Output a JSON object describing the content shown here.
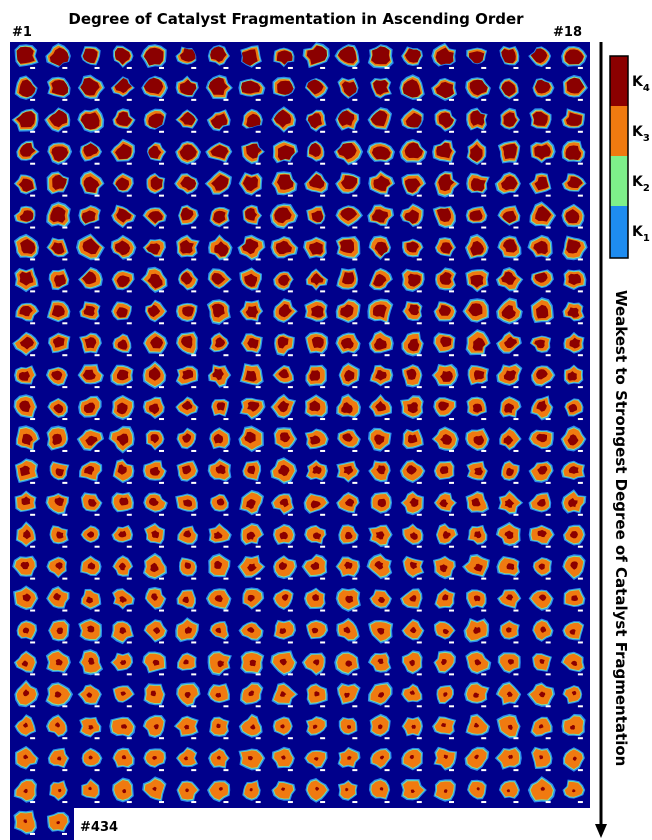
{
  "header": {
    "title": "Degree of Catalyst Fragmentation in Ascending Order",
    "first_label": "#1",
    "row_end_label": "#18",
    "last_label": "#434"
  },
  "colorbar": {
    "levels": [
      {
        "base": "K",
        "sub": "4"
      },
      {
        "base": "K",
        "sub": "3"
      },
      {
        "base": "K",
        "sub": "2"
      },
      {
        "base": "K",
        "sub": "1"
      }
    ]
  },
  "side_label": "Weakest to Strongest Degree of Catalyst Fragmentation"
}
